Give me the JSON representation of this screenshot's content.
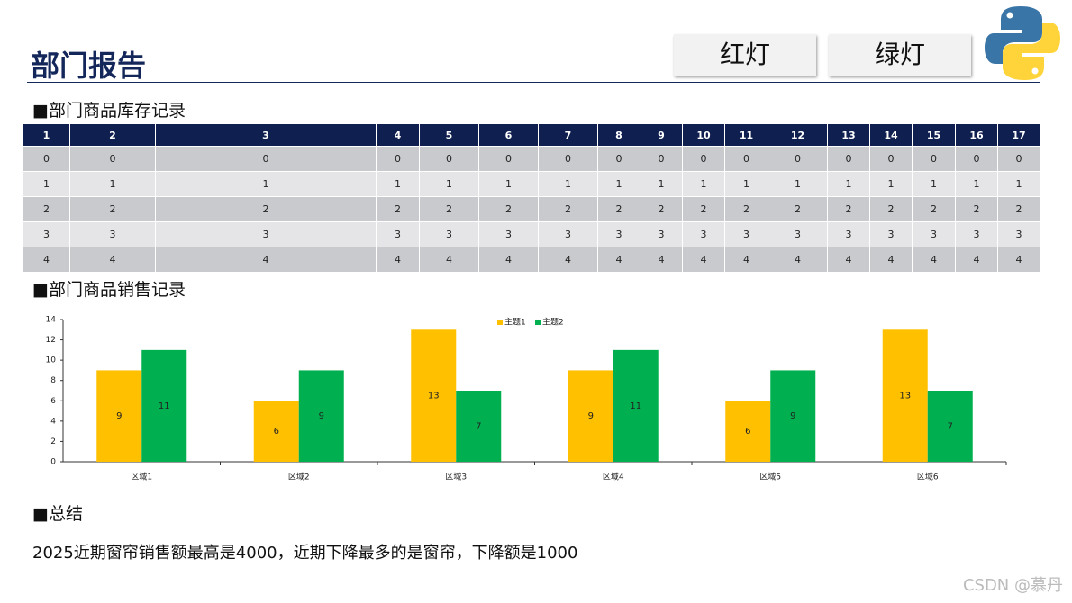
{
  "header": {
    "title": "部门报告",
    "buttons": [
      "红灯",
      "绿灯"
    ]
  },
  "inventory": {
    "title": "■部门商品库存记录",
    "columns": [
      1,
      2,
      3,
      4,
      5,
      6,
      7,
      8,
      9,
      10,
      11,
      12,
      13,
      14,
      15,
      16,
      17
    ],
    "rows": [
      [
        0,
        0,
        0,
        0,
        0,
        0,
        0,
        0,
        0,
        0,
        0,
        0,
        0,
        0,
        0,
        0,
        0
      ],
      [
        1,
        1,
        1,
        1,
        1,
        1,
        1,
        1,
        1,
        1,
        1,
        1,
        1,
        1,
        1,
        1,
        1
      ],
      [
        2,
        2,
        2,
        2,
        2,
        2,
        2,
        2,
        2,
        2,
        2,
        2,
        2,
        2,
        2,
        2,
        2
      ],
      [
        3,
        3,
        3,
        3,
        3,
        3,
        3,
        3,
        3,
        3,
        3,
        3,
        3,
        3,
        3,
        3,
        3
      ],
      [
        4,
        4,
        4,
        4,
        4,
        4,
        4,
        4,
        4,
        4,
        4,
        4,
        4,
        4,
        4,
        4,
        4
      ]
    ]
  },
  "sales": {
    "title": "■部门商品销售记录"
  },
  "chart_data": {
    "type": "bar",
    "categories": [
      "区域1",
      "区域2",
      "区域3",
      "区域4",
      "区域5",
      "区域6"
    ],
    "series": [
      {
        "name": "主题1",
        "color": "#FFC000",
        "values": [
          9,
          6,
          13,
          9,
          6,
          13
        ]
      },
      {
        "name": "主题2",
        "color": "#00B050",
        "values": [
          11,
          9,
          7,
          11,
          9,
          7
        ]
      }
    ],
    "ylim": [
      0,
      14
    ],
    "yticks": [
      0,
      2,
      4,
      6,
      8,
      10,
      12,
      14
    ],
    "grid": false,
    "legend": "top"
  },
  "summary": {
    "title": "■总结",
    "text": "2025近期窗帘销售额最高是4000，近期下降最多的是窗帘，下降额是1000"
  },
  "watermark": "CSDN @慕丹"
}
